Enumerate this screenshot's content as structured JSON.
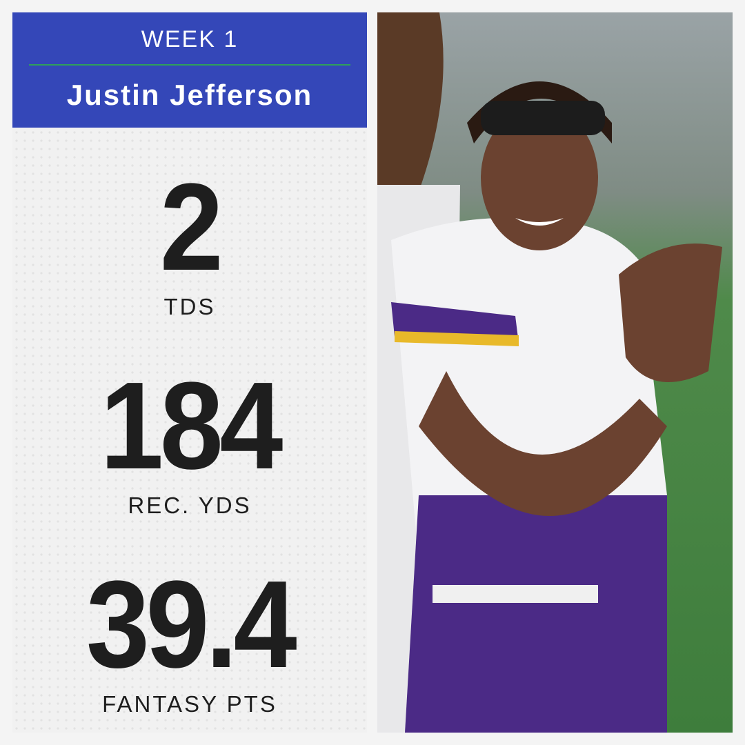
{
  "header": {
    "week": "WEEK 1",
    "name": "Justin Jefferson"
  },
  "stats": [
    {
      "value": "2",
      "label": "TDS"
    },
    {
      "value": "184",
      "label": "REC. YDS"
    },
    {
      "value": "39.4",
      "label": "FANTASY PTS"
    }
  ]
}
